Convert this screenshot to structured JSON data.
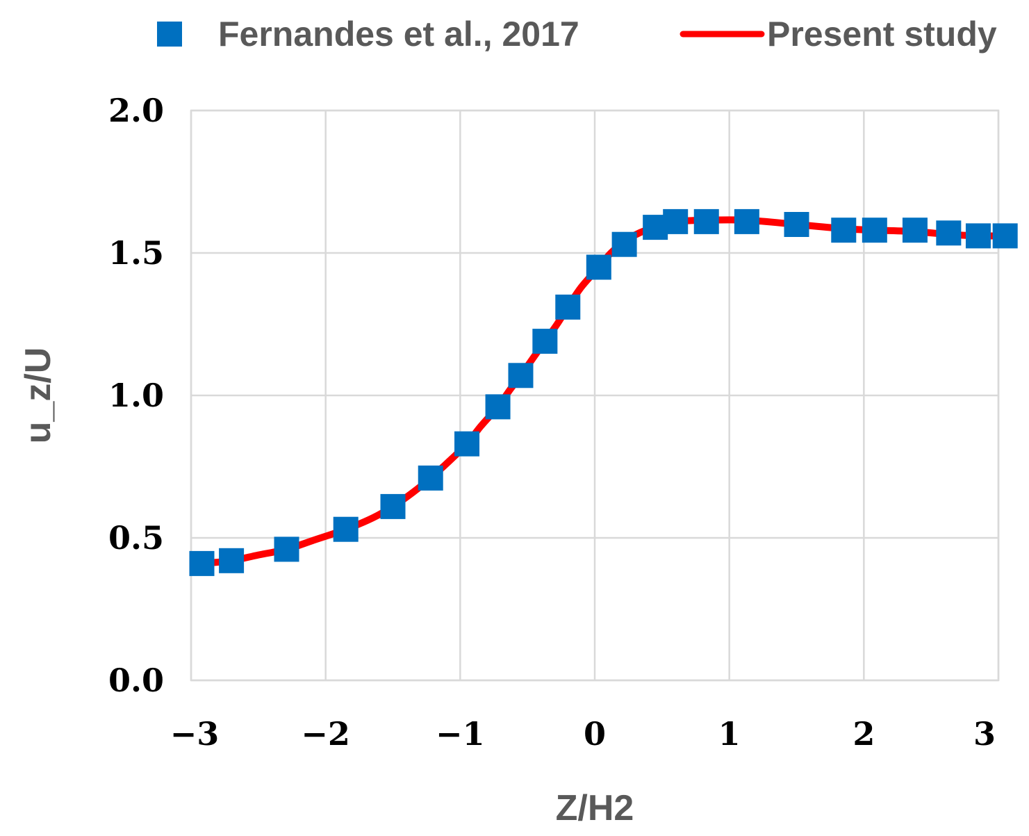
{
  "chart_data": {
    "type": "line",
    "title": "",
    "xlabel": "Z/H2",
    "ylabel": "u_z/U",
    "xlim": [
      -3,
      3
    ],
    "ylim": [
      0,
      2
    ],
    "xticks": [
      -3,
      -2,
      -1,
      0,
      1,
      2,
      3
    ],
    "xtick_labels": [
      "−3",
      "−2",
      "−1",
      "0",
      "1",
      "2",
      "3"
    ],
    "yticks": [
      0,
      0.5,
      1,
      1.5,
      2
    ],
    "ytick_labels": [
      "0.0",
      "0.5",
      "1.0",
      "1.5",
      "2.0"
    ],
    "grid": true,
    "legend_position": "top",
    "series": [
      {
        "name": "Fernandes et al., 2017",
        "kind": "scatter",
        "marker": "square",
        "color": "#0070c0",
        "x": [
          -2.92,
          -2.7,
          -2.29,
          -1.85,
          -1.5,
          -1.22,
          -0.95,
          -0.72,
          -0.55,
          -0.37,
          -0.2,
          0.03,
          0.22,
          0.45,
          0.6,
          0.83,
          1.13,
          1.5,
          1.85,
          2.08,
          2.38,
          2.63,
          2.85,
          3.05
        ],
        "y": [
          0.41,
          0.42,
          0.46,
          0.53,
          0.61,
          0.71,
          0.83,
          0.96,
          1.07,
          1.19,
          1.31,
          1.45,
          1.53,
          1.59,
          1.61,
          1.61,
          1.61,
          1.6,
          1.58,
          1.58,
          1.58,
          1.57,
          1.56,
          1.56
        ]
      },
      {
        "name": "Present study",
        "kind": "line",
        "color": "#ff0000",
        "x": [
          -2.92,
          -2.7,
          -2.5,
          -2.29,
          -2.1,
          -1.85,
          -1.65,
          -1.5,
          -1.35,
          -1.22,
          -1.08,
          -0.95,
          -0.85,
          -0.72,
          -0.63,
          -0.55,
          -0.46,
          -0.37,
          -0.28,
          -0.2,
          -0.1,
          0.03,
          0.12,
          0.22,
          0.33,
          0.45,
          0.6,
          0.83,
          1.13,
          1.5,
          1.85,
          2.08,
          2.38,
          2.63,
          2.85,
          3.05
        ],
        "y": [
          0.41,
          0.42,
          0.44,
          0.46,
          0.49,
          0.53,
          0.57,
          0.61,
          0.66,
          0.71,
          0.77,
          0.83,
          0.89,
          0.96,
          1.02,
          1.07,
          1.13,
          1.19,
          1.25,
          1.31,
          1.38,
          1.45,
          1.5,
          1.54,
          1.57,
          1.59,
          1.61,
          1.615,
          1.615,
          1.6,
          1.585,
          1.58,
          1.575,
          1.565,
          1.56,
          1.56
        ]
      }
    ]
  }
}
